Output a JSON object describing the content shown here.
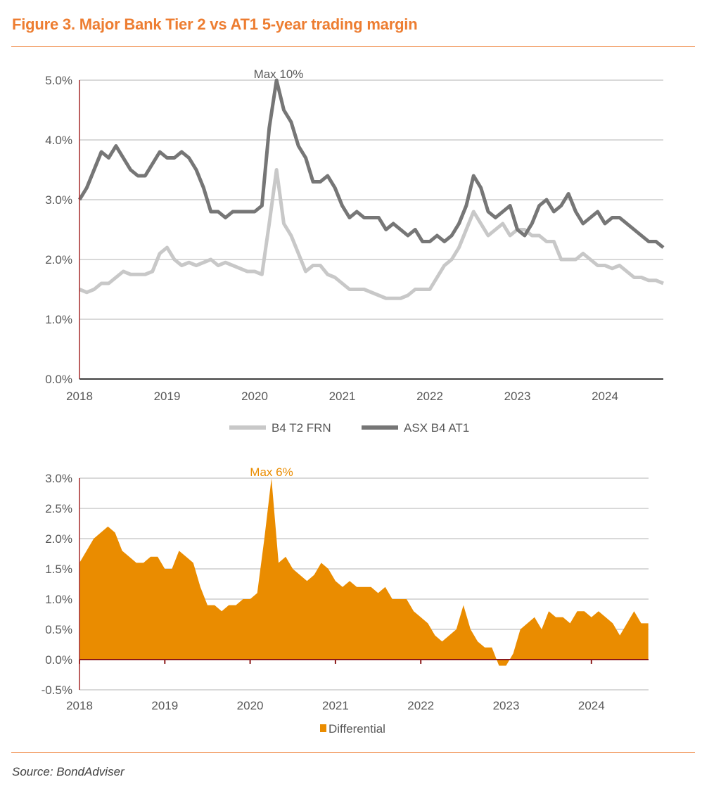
{
  "title": "Figure 3. Major Bank Tier 2 vs AT1 5-year trading margin",
  "source": "Source: BondAdviser",
  "chart_data": [
    {
      "type": "line",
      "x_frequency": "monthly",
      "x_start": "2018-01",
      "x_tick_labels": [
        "2018",
        "2019",
        "2020",
        "2021",
        "2022",
        "2023",
        "2024"
      ],
      "y_tick_labels": [
        "0.0%",
        "1.0%",
        "2.0%",
        "3.0%",
        "4.0%",
        "5.0%"
      ],
      "ylim": [
        0,
        5
      ],
      "grid": true,
      "legend": "bottom",
      "annotation": "Max 10%",
      "series": [
        {
          "name": "B4 T2 FRN",
          "color": "#c8c8c8",
          "values": [
            1.5,
            1.45,
            1.5,
            1.6,
            1.6,
            1.7,
            1.8,
            1.75,
            1.75,
            1.75,
            1.8,
            2.1,
            2.2,
            2.0,
            1.9,
            1.95,
            1.9,
            1.95,
            2.0,
            1.9,
            1.95,
            1.9,
            1.85,
            1.8,
            1.8,
            1.75,
            2.6,
            3.5,
            2.6,
            2.4,
            2.1,
            1.8,
            1.9,
            1.9,
            1.75,
            1.7,
            1.6,
            1.5,
            1.5,
            1.5,
            1.45,
            1.4,
            1.35,
            1.35,
            1.35,
            1.4,
            1.5,
            1.5,
            1.5,
            1.7,
            1.9,
            2.0,
            2.2,
            2.5,
            2.8,
            2.6,
            2.4,
            2.5,
            2.6,
            2.4,
            2.5,
            2.5,
            2.4,
            2.4,
            2.3,
            2.3,
            2.0,
            2.0,
            2.0,
            2.1,
            2.0,
            1.9,
            1.9,
            1.85,
            1.9,
            1.8,
            1.7,
            1.7,
            1.65,
            1.65,
            1.6
          ]
        },
        {
          "name": "ASX B4 AT1",
          "color": "#767676",
          "values": [
            3.0,
            3.2,
            3.5,
            3.8,
            3.7,
            3.9,
            3.7,
            3.5,
            3.4,
            3.4,
            3.6,
            3.8,
            3.7,
            3.7,
            3.8,
            3.7,
            3.5,
            3.2,
            2.8,
            2.8,
            2.7,
            2.8,
            2.8,
            2.8,
            2.8,
            2.9,
            4.2,
            5.0,
            4.5,
            4.3,
            3.9,
            3.7,
            3.3,
            3.3,
            3.4,
            3.2,
            2.9,
            2.7,
            2.8,
            2.7,
            2.7,
            2.7,
            2.5,
            2.6,
            2.5,
            2.4,
            2.5,
            2.3,
            2.3,
            2.4,
            2.3,
            2.4,
            2.6,
            2.9,
            3.4,
            3.2,
            2.8,
            2.7,
            2.8,
            2.9,
            2.5,
            2.4,
            2.6,
            2.9,
            3.0,
            2.8,
            2.9,
            3.1,
            2.8,
            2.6,
            2.7,
            2.8,
            2.6,
            2.7,
            2.7,
            2.6,
            2.5,
            2.4,
            2.3,
            2.3,
            2.2
          ]
        }
      ]
    },
    {
      "type": "area",
      "x_frequency": "monthly",
      "x_start": "2018-01",
      "x_tick_labels": [
        "2018",
        "2019",
        "2020",
        "2021",
        "2022",
        "2023",
        "2024"
      ],
      "y_tick_labels": [
        "-0.5%",
        "0.0%",
        "0.5%",
        "1.0%",
        "1.5%",
        "2.0%",
        "2.5%",
        "3.0%"
      ],
      "ylim": [
        -0.5,
        3.0
      ],
      "grid": true,
      "legend": "bottom",
      "annotation": "Max 6%",
      "series": [
        {
          "name": "Differential",
          "color": "#ea8c00",
          "values": [
            1.6,
            1.8,
            2.0,
            2.1,
            2.2,
            2.1,
            1.8,
            1.7,
            1.6,
            1.6,
            1.7,
            1.7,
            1.5,
            1.5,
            1.8,
            1.7,
            1.6,
            1.2,
            0.9,
            0.9,
            0.8,
            0.9,
            0.9,
            1.0,
            1.0,
            1.1,
            2.0,
            3.0,
            1.6,
            1.7,
            1.5,
            1.4,
            1.3,
            1.4,
            1.6,
            1.5,
            1.3,
            1.2,
            1.3,
            1.2,
            1.2,
            1.2,
            1.1,
            1.2,
            1.0,
            1.0,
            1.0,
            0.8,
            0.7,
            0.6,
            0.4,
            0.3,
            0.4,
            0.5,
            0.9,
            0.5,
            0.3,
            0.2,
            0.2,
            -0.1,
            -0.1,
            0.1,
            0.5,
            0.6,
            0.7,
            0.5,
            0.8,
            0.7,
            0.7,
            0.6,
            0.8,
            0.8,
            0.7,
            0.8,
            0.7,
            0.6,
            0.4,
            0.6,
            0.8,
            0.6,
            0.6
          ]
        }
      ]
    }
  ]
}
